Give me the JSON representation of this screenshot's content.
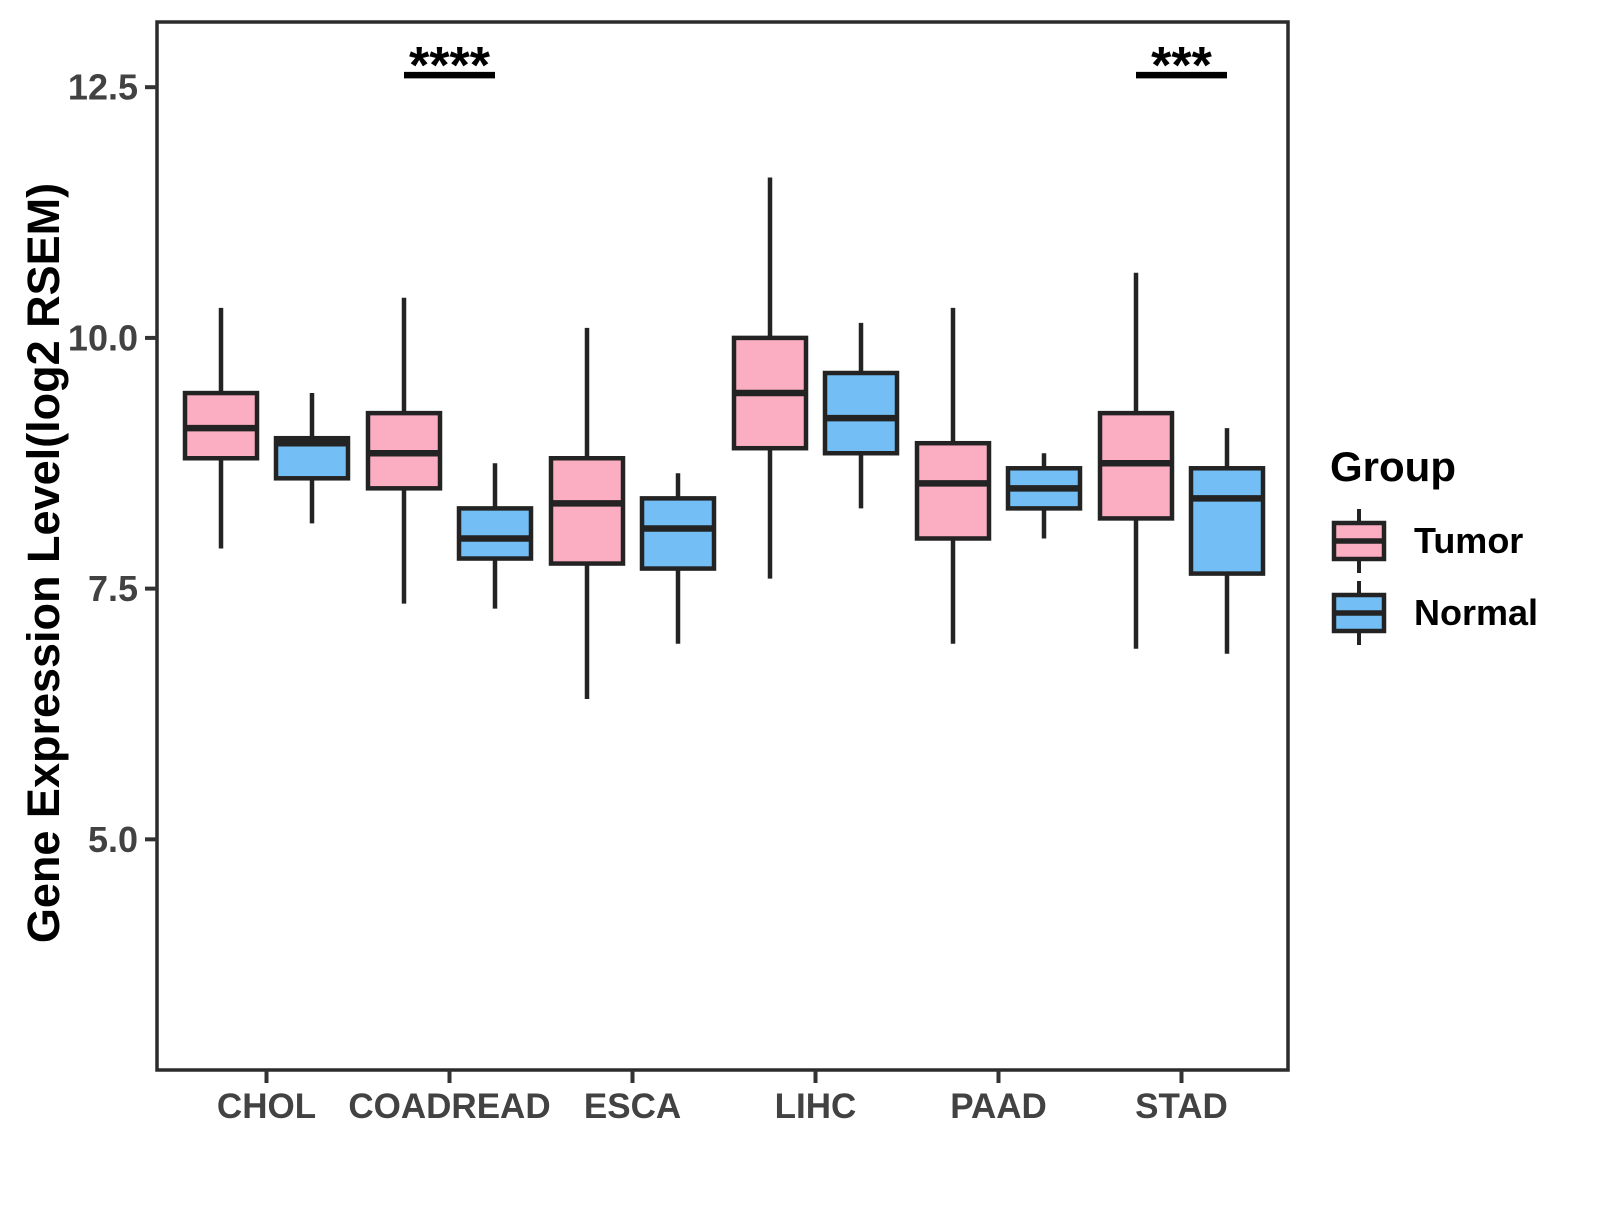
{
  "y_axis": {
    "title": "Gene Expression Level(log2 RSEM)",
    "tick_labels": [
      "12.5",
      "10.0",
      "7.5",
      "5.0"
    ],
    "tick_values": [
      12.5,
      10.0,
      7.5,
      5.0
    ]
  },
  "x_axis": {
    "categories": [
      "CHOL",
      "COADREAD",
      "ESCA",
      "LIHC",
      "PAAD",
      "STAD"
    ]
  },
  "legend": {
    "title": "Group",
    "entries": [
      {
        "label": "Tumor",
        "color": "#FBAEC2"
      },
      {
        "label": "Normal",
        "color": "#73BEF5"
      }
    ]
  },
  "colors": {
    "tumor_fill": "#FBAEC2",
    "normal_fill": "#73BEF5",
    "box_stroke": "#232323",
    "panel_border": "#2b2b2b",
    "tick_text": "#424242",
    "annotation": "#000000"
  },
  "chart_data": {
    "type": "boxplot",
    "title": "",
    "xlabel": "",
    "ylabel": "Gene Expression Level(log2 RSEM)",
    "ylim": [
      2.7,
      13.15
    ],
    "ytick_values": [
      5.0,
      7.5,
      10.0,
      12.5
    ],
    "categories": [
      "CHOL",
      "COADREAD",
      "ESCA",
      "LIHC",
      "PAAD",
      "STAD"
    ],
    "series": [
      {
        "name": "Tumor",
        "color": "#FBAEC2",
        "boxes": [
          {
            "low": 7.9,
            "q1": 8.8,
            "median": 9.1,
            "q3": 9.45,
            "high": 10.3
          },
          {
            "low": 7.35,
            "q1": 8.5,
            "median": 8.85,
            "q3": 9.25,
            "high": 10.4
          },
          {
            "low": 6.4,
            "q1": 7.75,
            "median": 8.35,
            "q3": 8.8,
            "high": 10.1
          },
          {
            "low": 7.6,
            "q1": 8.9,
            "median": 9.45,
            "q3": 10.0,
            "high": 11.6
          },
          {
            "low": 6.95,
            "q1": 8.0,
            "median": 8.55,
            "q3": 8.95,
            "high": 10.3
          },
          {
            "low": 6.9,
            "q1": 8.2,
            "median": 8.75,
            "q3": 9.25,
            "high": 10.65
          }
        ]
      },
      {
        "name": "Normal",
        "color": "#73BEF5",
        "boxes": [
          {
            "low": 8.15,
            "q1": 8.6,
            "median": 8.95,
            "q3": 9.0,
            "high": 9.45
          },
          {
            "low": 7.3,
            "q1": 7.8,
            "median": 8.0,
            "q3": 8.3,
            "high": 8.75
          },
          {
            "low": 6.95,
            "q1": 7.7,
            "median": 8.1,
            "q3": 8.4,
            "high": 8.65
          },
          {
            "low": 8.3,
            "q1": 8.85,
            "median": 9.2,
            "q3": 9.65,
            "high": 10.15
          },
          {
            "low": 8.0,
            "q1": 8.3,
            "median": 8.5,
            "q3": 8.7,
            "high": 8.85
          },
          {
            "low": 6.85,
            "q1": 7.65,
            "median": 8.4,
            "q3": 8.7,
            "high": 9.1
          }
        ]
      }
    ],
    "significance": [
      {
        "category": "COADREAD",
        "label": "****",
        "bar_y": 12.62
      },
      {
        "category": "STAD",
        "label": "***",
        "bar_y": 12.62
      }
    ],
    "legend_position": "right",
    "grid": false
  }
}
